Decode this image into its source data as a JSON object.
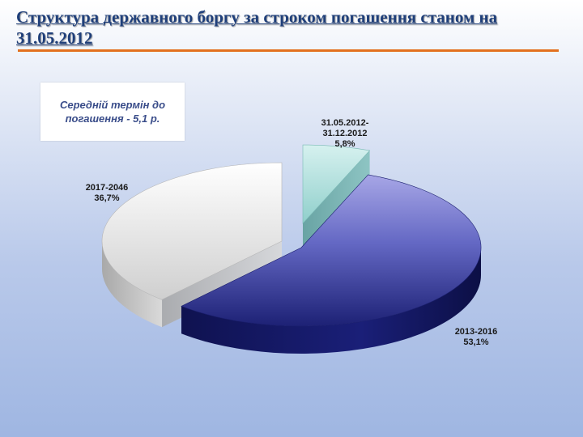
{
  "slide": {
    "title": "Структура державного боргу за строком погашення станом на 31.05.2012",
    "note": "Середній термін до погашення - 5,1 р."
  },
  "colors": {
    "title": "#1f3f7a",
    "rule": "#e3701e",
    "slice_short": "#a8dcd8",
    "slice_mid": "#2b2f8a",
    "slice_long": "#e2e2e2"
  },
  "chart_data": {
    "type": "pie",
    "title": "",
    "three_d": true,
    "exploded": true,
    "slices": [
      {
        "name": "31.05.2012-31.12.2012",
        "label_lines": [
          "31.05.2012-",
          "31.12.2012"
        ],
        "value": 5.8,
        "value_label": "5,8%"
      },
      {
        "name": "2013-2016",
        "label_lines": [
          "2013-2016"
        ],
        "value": 53.1,
        "value_label": "53,1%"
      },
      {
        "name": "2017-2046",
        "label_lines": [
          "2017-2046"
        ],
        "value": 36.7,
        "value_label": "36,7%"
      }
    ]
  }
}
